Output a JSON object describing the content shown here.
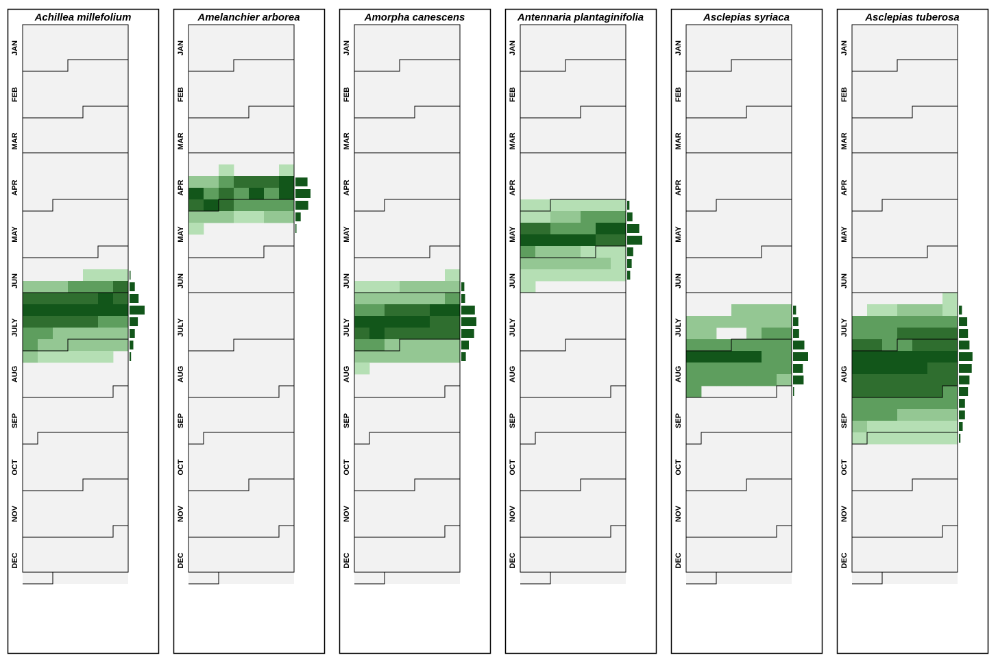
{
  "chart_data": {
    "type": "heatmap",
    "description_levels": "intensity 1 (lightest) to 5 (darkest); rows = weeks of year (4 per month), cols = 7 sub-columns",
    "months": [
      "JAN",
      "FEB",
      "MAR",
      "APR",
      "MAY",
      "JUN",
      "JULY",
      "AUG",
      "SEP",
      "OCT",
      "NOV",
      "DEC"
    ],
    "rows_per_month": 4,
    "columns": 7,
    "colors": {
      "background": "#f2f2f2",
      "level_1": "#b5dfb4",
      "level_2": "#94c793",
      "level_3": "#5e9e5e",
      "level_4": "#2f6e2f",
      "level_5": "#12561a",
      "bar": "#12561a"
    },
    "panels": [
      {
        "title": "Achillea millefolium",
        "calendar_offsets": [
          3,
          4,
          0,
          2,
          5,
          0,
          3,
          6,
          1,
          4,
          6,
          2
        ],
        "heat": [
          {
            "row": 21,
            "cells": [
              0,
              0,
              0,
              0,
              1,
              1,
              1
            ]
          },
          {
            "row": 22,
            "cells": [
              2,
              2,
              2,
              3,
              3,
              3,
              4
            ]
          },
          {
            "row": 23,
            "cells": [
              4,
              4,
              4,
              4,
              4,
              5,
              4
            ]
          },
          {
            "row": 24,
            "cells": [
              5,
              5,
              5,
              5,
              5,
              5,
              5
            ]
          },
          {
            "row": 25,
            "cells": [
              4,
              4,
              4,
              4,
              4,
              3,
              3
            ]
          },
          {
            "row": 26,
            "cells": [
              3,
              3,
              2,
              2,
              2,
              2,
              2
            ]
          },
          {
            "row": 27,
            "cells": [
              3,
              2,
              2,
              2,
              2,
              2,
              2
            ]
          },
          {
            "row": 28,
            "cells": [
              2,
              1,
              1,
              1,
              1,
              1,
              0
            ]
          }
        ],
        "bars": [
          [
            21,
            0.05
          ],
          [
            22,
            0.35
          ],
          [
            23,
            0.6
          ],
          [
            24,
            1.0
          ],
          [
            25,
            0.55
          ],
          [
            26,
            0.35
          ],
          [
            27,
            0.25
          ],
          [
            28,
            0.1
          ]
        ]
      },
      {
        "title": "Amelanchier arborea",
        "calendar_offsets": [
          3,
          4,
          0,
          2,
          5,
          0,
          3,
          6,
          1,
          4,
          6,
          2
        ],
        "heat": [
          {
            "row": 12,
            "cells": [
              0,
              0,
              1,
              0,
              0,
              0,
              1
            ]
          },
          {
            "row": 13,
            "cells": [
              2,
              2,
              3,
              4,
              4,
              4,
              5
            ]
          },
          {
            "row": 14,
            "cells": [
              5,
              3,
              4,
              3,
              5,
              3,
              5
            ]
          },
          {
            "row": 15,
            "cells": [
              4,
              5,
              4,
              3,
              3,
              3,
              3
            ]
          },
          {
            "row": 16,
            "cells": [
              2,
              2,
              2,
              1,
              1,
              2,
              2
            ]
          },
          {
            "row": 17,
            "cells": [
              1,
              0,
              0,
              0,
              0,
              0,
              0
            ]
          }
        ],
        "bars": [
          [
            13,
            0.8
          ],
          [
            14,
            1.0
          ],
          [
            15,
            0.85
          ],
          [
            16,
            0.35
          ],
          [
            17,
            0.05
          ]
        ]
      },
      {
        "title": "Amorpha canescens",
        "calendar_offsets": [
          3,
          4,
          0,
          2,
          5,
          0,
          3,
          6,
          1,
          4,
          6,
          2
        ],
        "heat": [
          {
            "row": 21,
            "cells": [
              0,
              0,
              0,
              0,
              0,
              0,
              1
            ]
          },
          {
            "row": 22,
            "cells": [
              1,
              1,
              1,
              2,
              2,
              2,
              2
            ]
          },
          {
            "row": 23,
            "cells": [
              2,
              2,
              2,
              2,
              2,
              2,
              3
            ]
          },
          {
            "row": 24,
            "cells": [
              3,
              3,
              4,
              4,
              4,
              5,
              5
            ]
          },
          {
            "row": 25,
            "cells": [
              5,
              5,
              5,
              5,
              5,
              4,
              4
            ]
          },
          {
            "row": 26,
            "cells": [
              4,
              5,
              4,
              4,
              4,
              4,
              4
            ]
          },
          {
            "row": 27,
            "cells": [
              3,
              3,
              2,
              2,
              2,
              2,
              2
            ]
          },
          {
            "row": 28,
            "cells": [
              2,
              2,
              2,
              2,
              2,
              2,
              2
            ]
          },
          {
            "row": 29,
            "cells": [
              1,
              0,
              0,
              0,
              0,
              0,
              0
            ]
          }
        ],
        "bars": [
          [
            22,
            0.2
          ],
          [
            23,
            0.25
          ],
          [
            24,
            0.9
          ],
          [
            25,
            1.0
          ],
          [
            26,
            0.85
          ],
          [
            27,
            0.5
          ],
          [
            28,
            0.3
          ]
        ]
      },
      {
        "title": "Antennaria plantaginifolia",
        "calendar_offsets": [
          3,
          4,
          0,
          2,
          5,
          0,
          3,
          6,
          1,
          4,
          6,
          2
        ],
        "heat": [
          {
            "row": 15,
            "cells": [
              1,
              1,
              1,
              1,
              1,
              1,
              1
            ]
          },
          {
            "row": 16,
            "cells": [
              1,
              1,
              2,
              2,
              3,
              3,
              3
            ]
          },
          {
            "row": 17,
            "cells": [
              4,
              4,
              3,
              3,
              3,
              5,
              5
            ]
          },
          {
            "row": 18,
            "cells": [
              5,
              5,
              5,
              5,
              5,
              4,
              4
            ]
          },
          {
            "row": 19,
            "cells": [
              3,
              2,
              2,
              2,
              1,
              1,
              1
            ]
          },
          {
            "row": 20,
            "cells": [
              2,
              2,
              2,
              2,
              2,
              2,
              1
            ]
          },
          {
            "row": 21,
            "cells": [
              1,
              1,
              1,
              1,
              1,
              1,
              1
            ]
          },
          {
            "row": 22,
            "cells": [
              1,
              0,
              0,
              0,
              0,
              0,
              0
            ]
          }
        ],
        "bars": [
          [
            15,
            0.15
          ],
          [
            16,
            0.35
          ],
          [
            17,
            0.8
          ],
          [
            18,
            1.0
          ],
          [
            19,
            0.4
          ],
          [
            20,
            0.3
          ],
          [
            21,
            0.2
          ]
        ]
      },
      {
        "title": "Asclepias syriaca",
        "calendar_offsets": [
          3,
          4,
          0,
          2,
          5,
          0,
          3,
          6,
          1,
          4,
          6,
          2
        ],
        "heat": [
          {
            "row": 24,
            "cells": [
              0,
              0,
              0,
              2,
              2,
              2,
              2
            ]
          },
          {
            "row": 25,
            "cells": [
              2,
              2,
              2,
              2,
              2,
              2,
              2
            ]
          },
          {
            "row": 26,
            "cells": [
              2,
              2,
              0,
              0,
              2,
              3,
              3
            ]
          },
          {
            "row": 27,
            "cells": [
              3,
              3,
              3,
              3,
              3,
              3,
              3
            ]
          },
          {
            "row": 28,
            "cells": [
              5,
              5,
              5,
              5,
              5,
              3,
              3
            ]
          },
          {
            "row": 29,
            "cells": [
              3,
              3,
              3,
              3,
              3,
              3,
              3
            ]
          },
          {
            "row": 30,
            "cells": [
              3,
              3,
              3,
              3,
              3,
              3,
              2
            ]
          },
          {
            "row": 31,
            "cells": [
              3,
              0,
              0,
              0,
              0,
              0,
              0
            ]
          }
        ],
        "bars": [
          [
            24,
            0.2
          ],
          [
            25,
            0.35
          ],
          [
            26,
            0.4
          ],
          [
            27,
            0.75
          ],
          [
            28,
            1.0
          ],
          [
            29,
            0.65
          ],
          [
            30,
            0.7
          ],
          [
            31,
            0.05
          ]
        ]
      },
      {
        "title": "Asclepias tuberosa",
        "calendar_offsets": [
          3,
          4,
          0,
          2,
          5,
          0,
          3,
          6,
          1,
          4,
          6,
          2
        ],
        "heat": [
          {
            "row": 23,
            "cells": [
              0,
              0,
              0,
              0,
              0,
              0,
              1
            ]
          },
          {
            "row": 24,
            "cells": [
              0,
              1,
              1,
              2,
              2,
              2,
              1
            ]
          },
          {
            "row": 25,
            "cells": [
              3,
              3,
              3,
              3,
              3,
              3,
              3
            ]
          },
          {
            "row": 26,
            "cells": [
              3,
              3,
              3,
              4,
              4,
              4,
              4
            ]
          },
          {
            "row": 27,
            "cells": [
              4,
              4,
              3,
              3,
              4,
              4,
              4
            ]
          },
          {
            "row": 28,
            "cells": [
              5,
              5,
              5,
              5,
              5,
              5,
              5
            ]
          },
          {
            "row": 29,
            "cells": [
              5,
              5,
              5,
              5,
              5,
              4,
              4
            ]
          },
          {
            "row": 30,
            "cells": [
              4,
              4,
              4,
              4,
              4,
              4,
              4
            ]
          },
          {
            "row": 31,
            "cells": [
              4,
              4,
              4,
              4,
              4,
              4,
              3
            ]
          },
          {
            "row": 32,
            "cells": [
              3,
              3,
              3,
              3,
              3,
              3,
              3
            ]
          },
          {
            "row": 33,
            "cells": [
              3,
              3,
              3,
              2,
              2,
              2,
              2
            ]
          },
          {
            "row": 34,
            "cells": [
              2,
              1,
              1,
              1,
              1,
              1,
              1
            ]
          },
          {
            "row": 35,
            "cells": [
              1,
              1,
              1,
              1,
              1,
              1,
              1
            ]
          }
        ],
        "bars": [
          [
            24,
            0.2
          ],
          [
            25,
            0.55
          ],
          [
            26,
            0.6
          ],
          [
            27,
            0.7
          ],
          [
            28,
            0.9
          ],
          [
            29,
            0.85
          ],
          [
            30,
            0.7
          ],
          [
            31,
            0.6
          ],
          [
            32,
            0.4
          ],
          [
            33,
            0.4
          ],
          [
            34,
            0.25
          ],
          [
            35,
            0.1
          ]
        ]
      }
    ]
  }
}
